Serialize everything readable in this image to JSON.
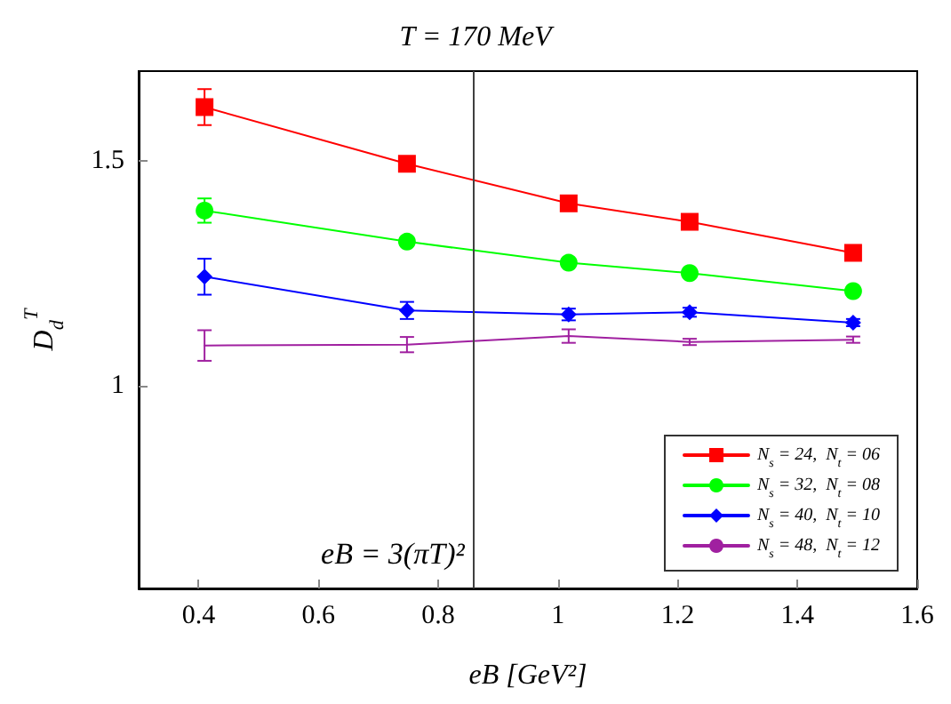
{
  "chart_data": {
    "type": "line",
    "title": "T = 170 MeV",
    "xlabel": "eB [GeV²]",
    "ylabel": "D$_{d}$$^{T}$",
    "xlim": [
      0.3,
      1.6
    ],
    "xticks": [
      0.4,
      0.6,
      0.8,
      1,
      1.2,
      1.4,
      1.6
    ],
    "ylim": [
      0.55,
      1.7
    ],
    "yticks": [
      1,
      1.5
    ],
    "grid": false,
    "legend": "bottom right",
    "line_style": "solid",
    "x": [
      0.41,
      0.748,
      1.018,
      1.22,
      1.493
    ],
    "series": [
      {
        "name": "N$_{s}$ = 24,  N$_{t}$ = 06",
        "color": "#ff0000",
        "marker": "square",
        "values": [
          1.62,
          1.494,
          1.406,
          1.365,
          1.296
        ],
        "errors": [
          0.04,
          null,
          null,
          null,
          null
        ]
      },
      {
        "name": "N$_{s}$ = 32,  N$_{t}$ = 08",
        "color": "#00ff00",
        "marker": "circle",
        "values": [
          1.39,
          1.321,
          1.274,
          1.251,
          1.211
        ],
        "errors": [
          0.027,
          null,
          null,
          null,
          null
        ]
      },
      {
        "name": "N$_{s}$ = 40,  N$_{t}$ = 10",
        "color": "#0000ff",
        "marker": "diamond",
        "values": [
          1.243,
          1.168,
          1.159,
          1.164,
          1.141
        ],
        "errors": [
          0.04,
          0.019,
          0.013,
          0.01,
          0.008
        ]
      },
      {
        "name": "N$_{s}$ = 48,  N$_{t}$ = 12",
        "color": "#a020a0",
        "marker": "none",
        "values": [
          1.09,
          1.092,
          1.111,
          1.098,
          1.103
        ],
        "errors": [
          0.034,
          0.017,
          0.015,
          0.007,
          0.007
        ]
      }
    ],
    "ref_lines": [
      {
        "axis": "x",
        "value": 0.856,
        "color": "#404040"
      }
    ],
    "annotations": [
      "eB = 3(πT)²"
    ]
  }
}
